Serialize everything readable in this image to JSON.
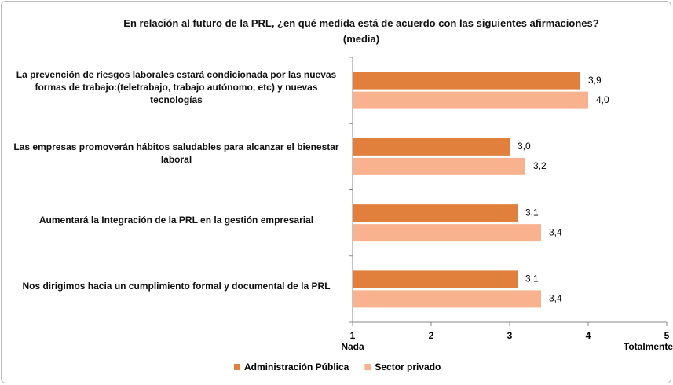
{
  "chart_data": {
    "type": "bar",
    "orientation": "horizontal",
    "title": "En relación al futuro de la PRL, ¿en qué medida está de acuerdo con las siguientes afirmaciones? (media)",
    "categories": [
      "La prevención de riesgos laborales estará condicionada por las nuevas formas de trabajo:(teletrabajo, trabajo autónomo, etc) y nuevas tecnologías",
      "Las empresas promoverán hábitos saludables para alcanzar el bienestar laboral",
      "Aumentará la Integración de la PRL en la gestión empresarial",
      "Nos dirigimos hacia un cumplimiento formal y documental de la PRL"
    ],
    "series": [
      {
        "name": "Administración Pública",
        "color": "#e0803c",
        "values": [
          3.9,
          3.0,
          3.1,
          3.1
        ],
        "value_labels": [
          "3,9",
          "3,0",
          "3,1",
          "3,1"
        ]
      },
      {
        "name": "Sector privado",
        "color": "#f8b38e",
        "values": [
          4.0,
          3.2,
          3.4,
          3.4
        ],
        "value_labels": [
          "4,0",
          "3,2",
          "3,4",
          "3,4"
        ]
      }
    ],
    "xlim": [
      1,
      5
    ],
    "xticks": [
      1,
      2,
      3,
      4,
      5
    ],
    "x_min_label": "Nada",
    "x_max_label": "Totalmente",
    "legend": "bottom"
  }
}
